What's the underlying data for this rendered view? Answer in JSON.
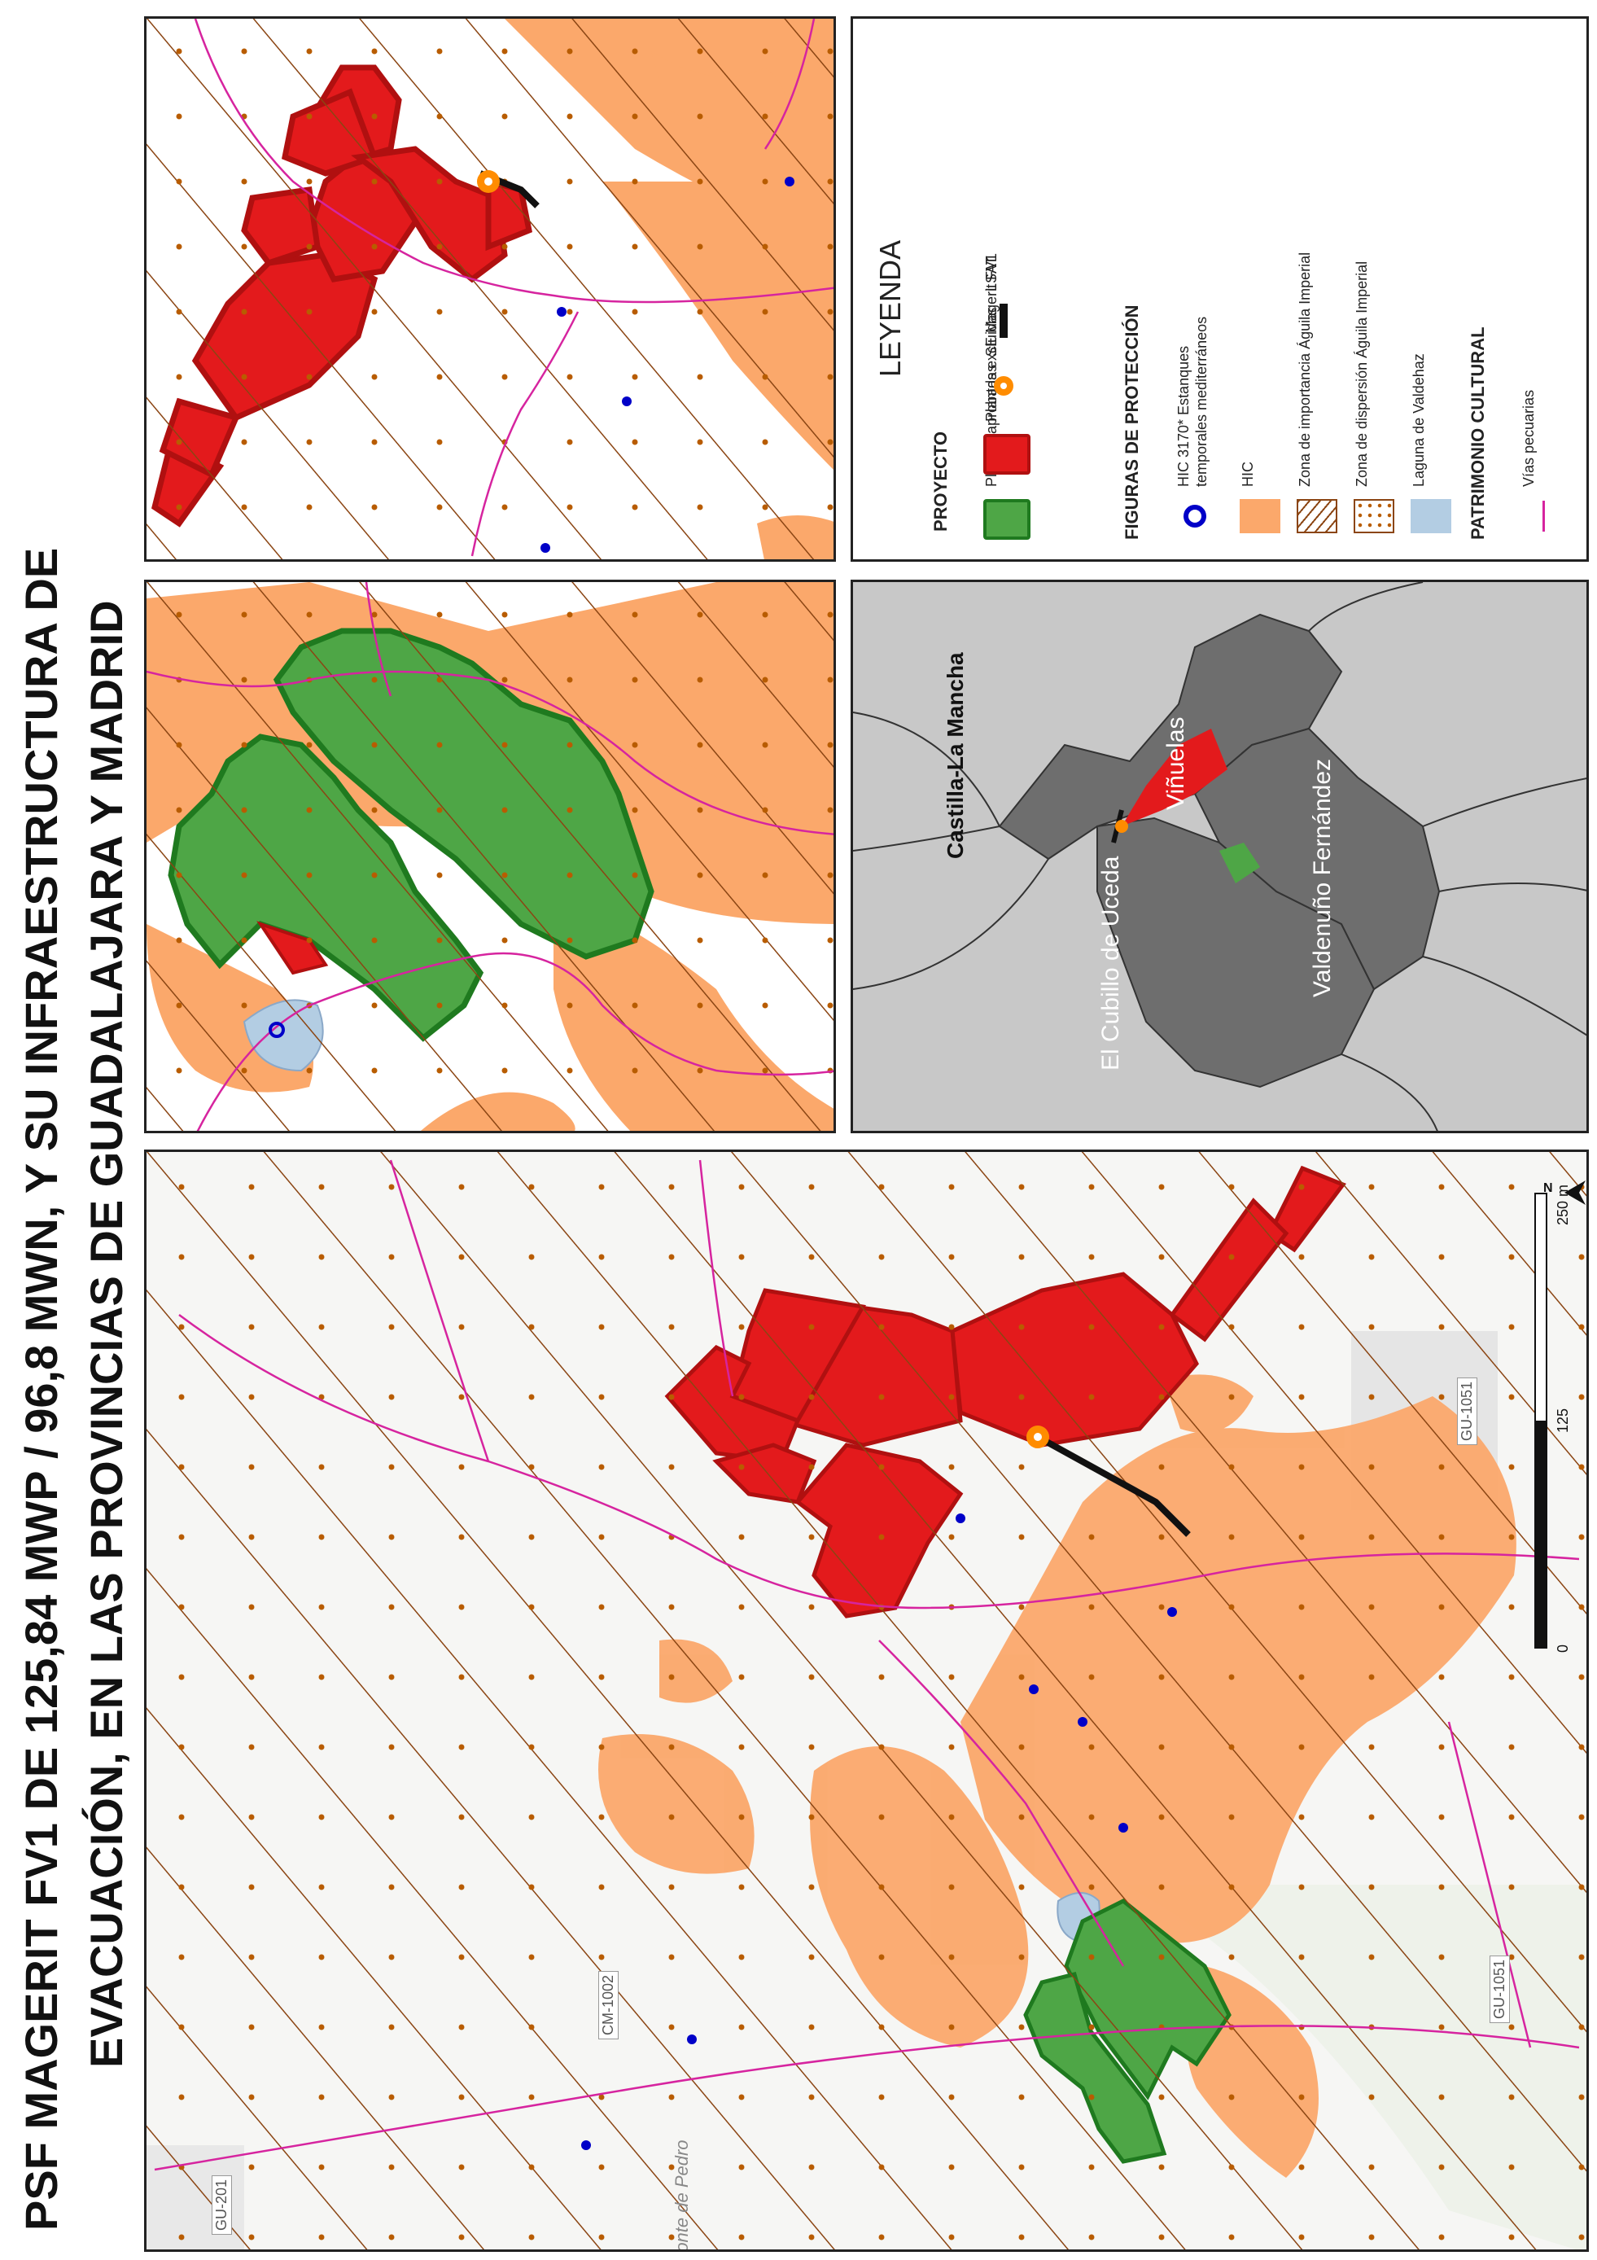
{
  "title": {
    "line1": "PSF MAGERIT FV1 DE 125,84 MWP / 96,8 MWN, Y SU INFRAESTRUCTURA DE",
    "line2": "EVACUACIÓN, EN LAS PROVINCIAS DE GUADALAJARA Y MADRID"
  },
  "main_map": {
    "road_labels": [
      "GU-201",
      "CM-1002",
      "GU-1051",
      "GU-1051"
    ],
    "place_label": "Monte de Pedro",
    "north_arrow": "N",
    "scale": {
      "labels": [
        "0",
        "125",
        "250 m"
      ]
    }
  },
  "locator_map": {
    "region_label": "Castilla-La Mancha",
    "municipalities": [
      "Viñuelas",
      "El Cubillo de Uceda",
      "Valdenuño Fernández"
    ]
  },
  "legend": {
    "title": "LEYENDA",
    "sections": [
      {
        "heading": "PROYECTO",
        "items": [
          "Plantas aprobadas",
          "Plantas excluidas",
          "SE Magerit FV1",
          "LSAT"
        ]
      },
      {
        "heading": "FIGURAS DE PROTECCIÓN",
        "items": [
          "HIC 3170* Estanques temporales mediterráneos",
          "HIC",
          "Zona de importancia Águila Imperial",
          "Zona de dispersión Águila Imperial",
          "Laguna de Valdehaz"
        ]
      },
      {
        "heading": "PATRIMONIO CULTURAL",
        "items": [
          "Vías pecuarias"
        ]
      }
    ]
  },
  "colors": {
    "approved": "#4ea646",
    "approved_border": "#1f7a1f",
    "excluded": "#e31a1c",
    "excluded_border": "#b01010",
    "hic": "#fba86b",
    "laguna": "#b3cde3",
    "vias": "#d6249f",
    "hatch": "#8b4513",
    "dots": "#b85c00",
    "pond": "#0000c8",
    "se": "#ff8c00"
  }
}
